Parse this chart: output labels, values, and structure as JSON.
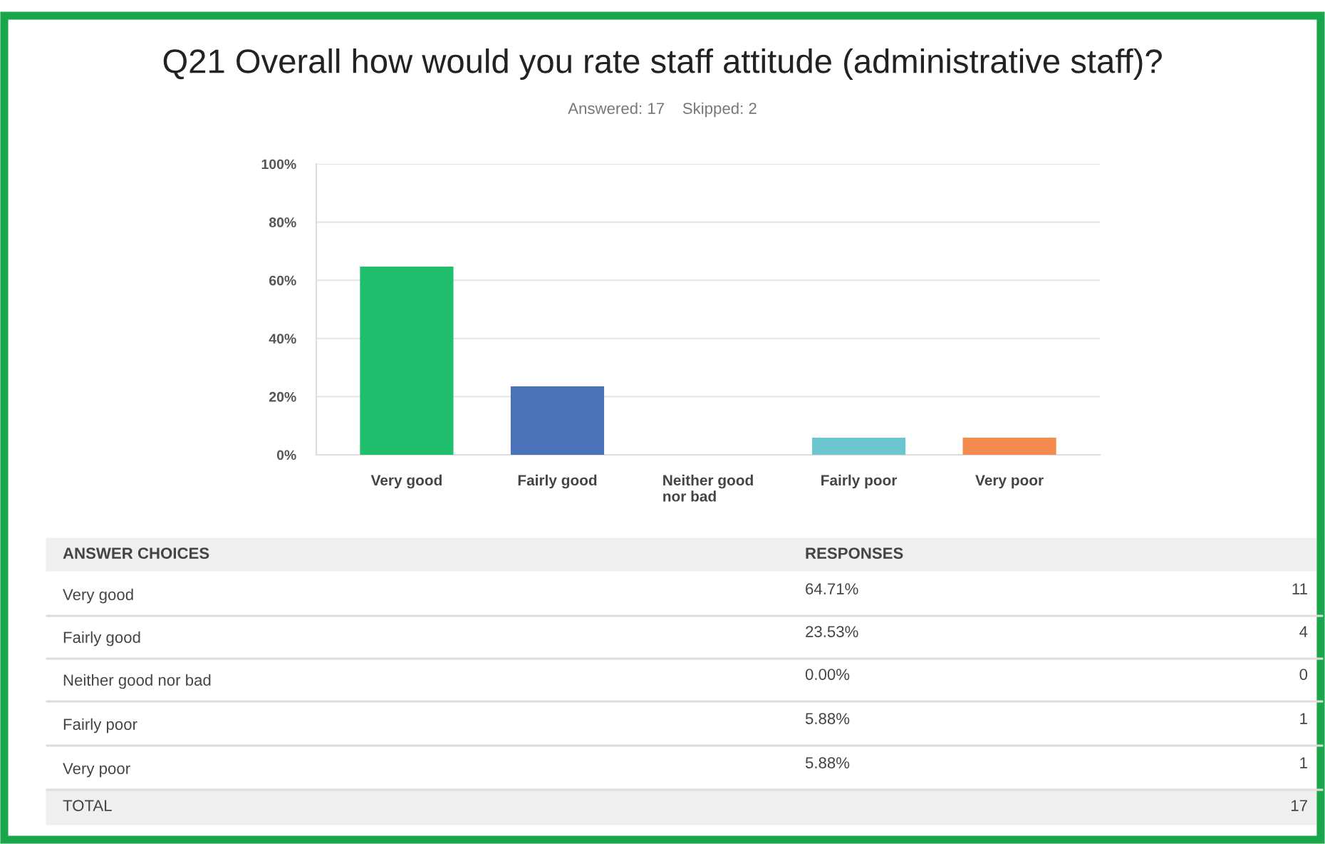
{
  "chart_data": {
    "type": "bar",
    "title": "Q21 Overall how would you rate staff attitude (administrative staff)?",
    "subtitle": "Answered: 17    Skipped: 2",
    "categories": [
      "Very good",
      "Fairly good",
      "Neither good nor bad",
      "Fairly poor",
      "Very poor"
    ],
    "values": [
      64.71,
      23.53,
      0,
      5.88,
      5.88
    ],
    "colors": [
      "#1fbf6e",
      "#4a72b8",
      "#a0a0a0",
      "#6cc6cf",
      "#f58a4f"
    ],
    "annotations": [
      "ANSWER CHOICES",
      "RESPONSES",
      "11",
      "4",
      "0",
      "1",
      "1",
      "TOTAL",
      "17",
      "64.71%",
      "23.53%",
      "0.00%",
      "5.88%",
      "5.88%"
    ],
    "ylim": [
      0,
      100
    ],
    "yticks": [
      {
        "value": 0,
        "label": "0%"
      },
      {
        "value": 20,
        "label": "20%"
      },
      {
        "value": 40,
        "label": "40%"
      },
      {
        "value": 60,
        "label": "60%"
      },
      {
        "value": 80,
        "label": "80%"
      },
      {
        "value": 100,
        "label": "100%"
      }
    ],
    "grid": "y",
    "legend": false
  }
}
